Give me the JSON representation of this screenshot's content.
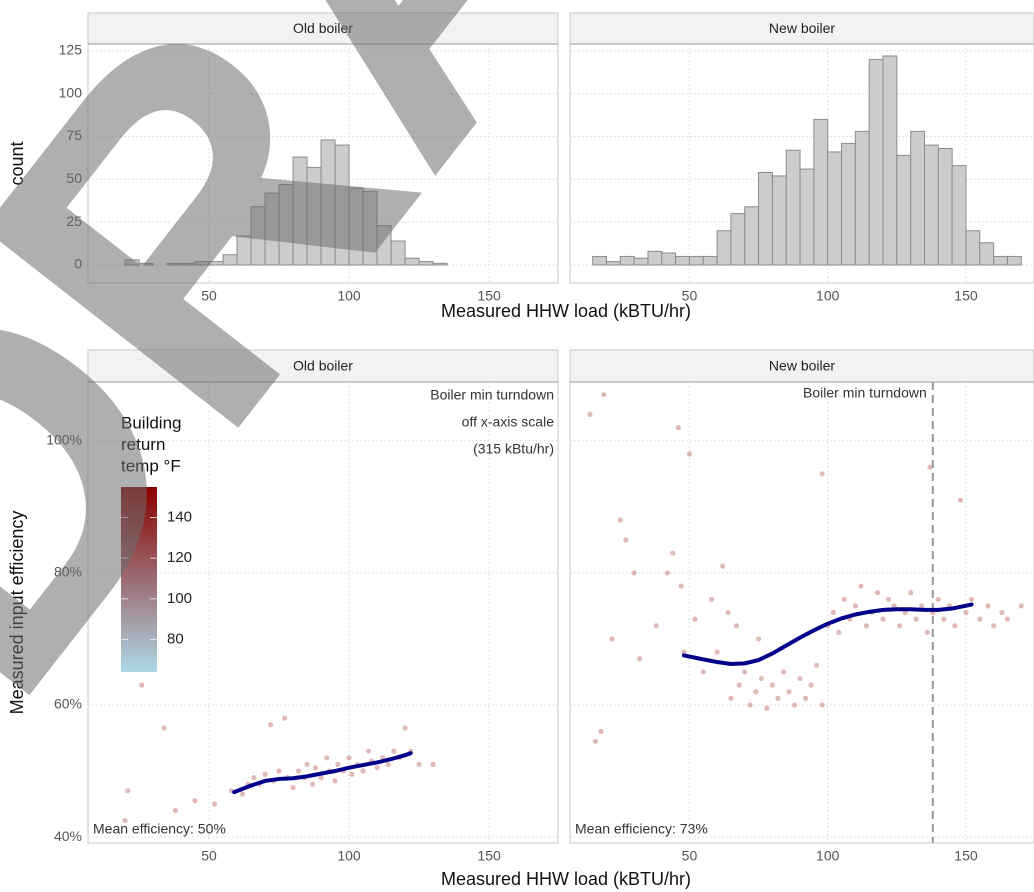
{
  "watermark": "DRAFT",
  "chart_data": [
    {
      "type": "histogram",
      "ylabel": "count",
      "xlabel": "Measured HHW load (kBTU/hr)",
      "bins": [
        15,
        20,
        25,
        30,
        35,
        40,
        45,
        50,
        55,
        60,
        65,
        70,
        75,
        80,
        85,
        90,
        95,
        100,
        105,
        110,
        115,
        120,
        125,
        130,
        135,
        140,
        145,
        150,
        155,
        160,
        165,
        170
      ],
      "color": "#cccccc",
      "edge_color": "#8c8c8c",
      "xlim": [
        6.8,
        174.6
      ],
      "xticks": [
        50,
        100,
        150
      ],
      "ylim": [
        -10.5,
        129
      ],
      "yticks": [
        0,
        25,
        50,
        75,
        100,
        125
      ],
      "grid": true,
      "panels": [
        {
          "title": "Old boiler",
          "values": [
            0,
            3,
            1,
            0,
            1,
            1,
            2,
            2,
            6,
            17,
            34,
            42,
            47,
            63,
            57,
            73,
            70,
            45,
            43,
            23,
            14,
            4,
            2,
            1,
            0,
            0,
            0,
            0,
            0,
            0,
            0
          ]
        },
        {
          "title": "New boiler",
          "values": [
            5,
            2,
            5,
            4,
            8,
            7,
            5,
            5,
            5,
            20,
            30,
            34,
            54,
            52,
            67,
            56,
            85,
            66,
            71,
            78,
            120,
            122,
            64,
            78,
            70,
            68,
            58,
            20,
            13,
            5,
            5
          ]
        }
      ]
    },
    {
      "type": "scatter",
      "ylabel": "Measured input efficiency",
      "xlabel": "Measured HHW load (kBTU/hr)",
      "color": "#b5524a",
      "fit_color": "#00008b",
      "vline_color": "#999999",
      "xlim": [
        6.8,
        174.6
      ],
      "xticks": [
        50,
        100,
        150
      ],
      "ylim": [
        39.1,
        108.9
      ],
      "yticks": [
        {
          "value": 40,
          "label": "40%"
        },
        {
          "value": 60,
          "label": "60%"
        },
        {
          "value": 80,
          "label": "80%"
        },
        {
          "value": 100,
          "label": "100%"
        }
      ],
      "grid": true,
      "colorbar": {
        "title": [
          "Building",
          "return",
          "temp °F"
        ],
        "lim": [
          64,
          155
        ],
        "ticks": [
          80,
          100,
          120,
          140
        ],
        "low": "#add8e6",
        "high": "#8b0000"
      },
      "panels": [
        {
          "title": "Old boiler",
          "x": [
            20,
            21,
            26,
            34,
            38,
            45,
            52,
            58,
            62,
            64,
            66,
            68,
            70,
            72,
            73,
            75,
            77,
            78,
            80,
            82,
            84,
            85,
            87,
            88,
            90,
            92,
            93,
            95,
            96,
            98,
            100,
            101,
            103,
            105,
            107,
            108,
            110,
            112,
            114,
            116,
            118,
            120,
            122,
            125,
            130
          ],
          "y": [
            42.5,
            47,
            63,
            56.5,
            44,
            45.5,
            45,
            47,
            46.5,
            48,
            49,
            48,
            49.5,
            57,
            48.5,
            50,
            58,
            49,
            47.5,
            50,
            49,
            51,
            48,
            50.5,
            49,
            52,
            50,
            48.5,
            51,
            50,
            52,
            49.5,
            51,
            50,
            53,
            51.5,
            50.5,
            52,
            51,
            53,
            52,
            56.5,
            53,
            51,
            51
          ],
          "fit_x": [
            59,
            65,
            70,
            75,
            80,
            85,
            90,
            95,
            100,
            105,
            110,
            115,
            120,
            122
          ],
          "fit_y": [
            46.8,
            47.8,
            48.5,
            48.8,
            48.9,
            49.2,
            49.6,
            50.0,
            50.5,
            50.9,
            51.3,
            51.8,
            52.4,
            52.7
          ],
          "note": [
            "Boiler min turndown",
            "off x-axis scale",
            "(315 kBtu/hr)"
          ],
          "mean_label": "Mean efficiency: 50%"
        },
        {
          "title": "New boiler",
          "x": [
            14,
            16,
            18,
            19,
            22,
            25,
            27,
            30,
            32,
            38,
            42,
            44,
            46,
            47,
            48,
            50,
            52,
            55,
            58,
            60,
            62,
            64,
            65,
            67,
            68,
            70,
            72,
            74,
            75,
            76,
            78,
            80,
            82,
            84,
            86,
            88,
            90,
            92,
            94,
            96,
            98,
            98,
            100,
            102,
            104,
            106,
            108,
            110,
            112,
            114,
            116,
            118,
            120,
            122,
            124,
            126,
            128,
            130,
            132,
            134,
            136,
            137,
            138,
            140,
            142,
            144,
            146,
            148,
            150,
            152,
            155,
            158,
            160,
            163,
            165,
            170
          ],
          "y": [
            104,
            54.5,
            56,
            107,
            70,
            88,
            85,
            80,
            67,
            72,
            80,
            83,
            102,
            78,
            68,
            98,
            73,
            65,
            76,
            68,
            81,
            74,
            61,
            72,
            63,
            65,
            60,
            62,
            70,
            64,
            59.5,
            63,
            61,
            65,
            62,
            60,
            64,
            61,
            63,
            66,
            95,
            60,
            72,
            74,
            71,
            76,
            73,
            75,
            78,
            72,
            74,
            77,
            73,
            76,
            75,
            72,
            74,
            77,
            73,
            75,
            71,
            96,
            74,
            76,
            73,
            75,
            72,
            91,
            74,
            76,
            73,
            75,
            72,
            74,
            73,
            75
          ],
          "fit_x": [
            48,
            55,
            60,
            65,
            70,
            75,
            80,
            85,
            90,
            95,
            100,
            105,
            110,
            115,
            120,
            125,
            130,
            135,
            140,
            145,
            152
          ],
          "fit_y": [
            67.5,
            66.9,
            66.5,
            66.2,
            66.3,
            66.8,
            67.8,
            69.0,
            70.2,
            71.3,
            72.3,
            73.1,
            73.7,
            74.1,
            74.4,
            74.5,
            74.5,
            74.4,
            74.4,
            74.6,
            75.2
          ],
          "vline": 138,
          "vline_label": "Boiler min turndown",
          "mean_label": "Mean efficiency: 73%"
        }
      ]
    }
  ]
}
